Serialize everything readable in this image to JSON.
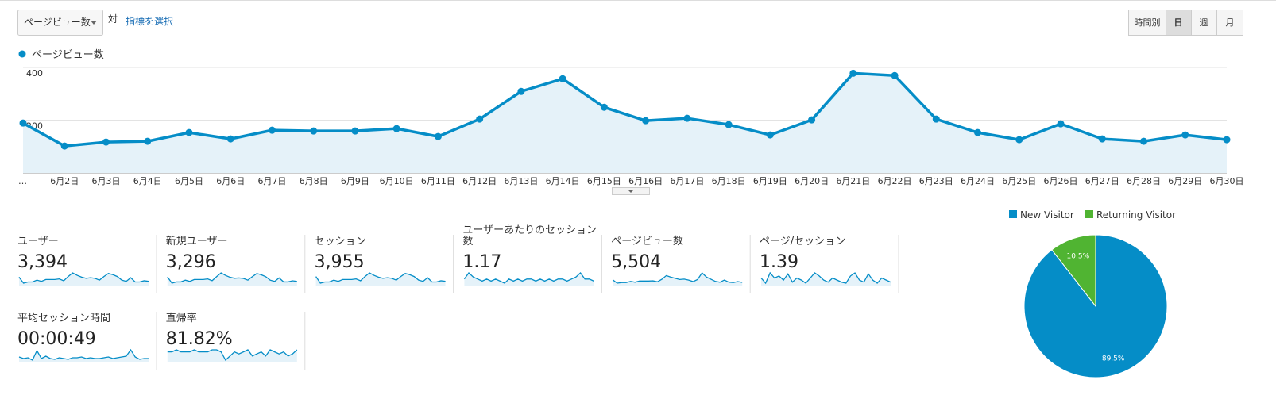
{
  "toolbar": {
    "metric_select": "ページビュー数",
    "vs": "対",
    "select_metric": "指標を選択",
    "intervals": [
      "時間別",
      "日",
      "週",
      "月"
    ]
  },
  "chart_data": [
    {
      "type": "line",
      "categories": [
        "…",
        "6月2日",
        "6月3日",
        "6月4日",
        "6月5日",
        "6月6日",
        "6月7日",
        "6月8日",
        "6月9日",
        "6月10日",
        "6月11日",
        "6月12日",
        "6月13日",
        "6月14日",
        "6月15日",
        "6月16日",
        "6月17日",
        "6月18日",
        "6月19日",
        "6月20日",
        "6月21日",
        "6月22日",
        "6月23日",
        "6月24日",
        "6月25日",
        "6月26日",
        "6月27日",
        "6月28日",
        "6月29日",
        "6月30日"
      ],
      "series": [
        {
          "name": "ページビュー数",
          "color": "#058dc7",
          "values": [
            189,
            102,
            117,
            120,
            153,
            129,
            162,
            159,
            159,
            168,
            138,
            204,
            309,
            357,
            249,
            198,
            207,
            183,
            144,
            201,
            378,
            369,
            204,
            153,
            126,
            186,
            129,
            120,
            144,
            126
          ]
        }
      ],
      "ylim": [
        0,
        400
      ],
      "yticks": [
        200,
        400
      ],
      "grid": true
    },
    {
      "type": "pie",
      "categories": [
        "New Visitor",
        "Returning Visitor"
      ],
      "values": [
        89.5,
        10.5
      ],
      "value_labels": [
        "89.5%",
        "10.5%"
      ],
      "colors": [
        "#058dc7",
        "#50b432"
      ]
    }
  ],
  "metrics": [
    {
      "label": "ユーザー",
      "value": "3,394",
      "sparkline": [
        120,
        70,
        80,
        80,
        95,
        85,
        100,
        100,
        100,
        105,
        90,
        125,
        155,
        135,
        120,
        110,
        115,
        110,
        95,
        125,
        150,
        140,
        125,
        95,
        85,
        115,
        80,
        80,
        90,
        85
      ]
    },
    {
      "label": "新規ユーザー",
      "value": "3,296",
      "sparkline": [
        118,
        68,
        78,
        78,
        92,
        82,
        97,
        97,
        97,
        102,
        88,
        120,
        150,
        130,
        115,
        107,
        110,
        106,
        92,
        120,
        145,
        135,
        120,
        92,
        82,
        110,
        78,
        78,
        87,
        82
      ]
    },
    {
      "label": "セッション",
      "value": "3,955",
      "sparkline": [
        140,
        85,
        95,
        95,
        110,
        100,
        115,
        115,
        115,
        120,
        105,
        140,
        170,
        150,
        135,
        125,
        130,
        125,
        110,
        140,
        165,
        155,
        140,
        110,
        100,
        130,
        95,
        95,
        105,
        100
      ]
    },
    {
      "label": "ユーザーあたりのセッション数",
      "value": "1.17",
      "sparkline": [
        1.17,
        1.2,
        1.18,
        1.17,
        1.16,
        1.17,
        1.16,
        1.17,
        1.16,
        1.15,
        1.17,
        1.16,
        1.17,
        1.16,
        1.17,
        1.17,
        1.16,
        1.17,
        1.16,
        1.17,
        1.16,
        1.17,
        1.17,
        1.16,
        1.17,
        1.18,
        1.2,
        1.17,
        1.17,
        1.16
      ]
    },
    {
      "label": "ページビュー数",
      "value": "5,504",
      "sparkline": [
        190,
        105,
        120,
        120,
        150,
        130,
        160,
        160,
        160,
        165,
        140,
        205,
        300,
        260,
        230,
        200,
        210,
        185,
        145,
        200,
        370,
        260,
        205,
        150,
        130,
        185,
        130,
        120,
        145,
        125
      ]
    },
    {
      "label": "ページ/セッション",
      "value": "1.39",
      "sparkline": [
        1.4,
        1.35,
        1.45,
        1.4,
        1.42,
        1.38,
        1.44,
        1.36,
        1.4,
        1.38,
        1.35,
        1.4,
        1.45,
        1.42,
        1.38,
        1.36,
        1.4,
        1.38,
        1.36,
        1.35,
        1.42,
        1.45,
        1.38,
        1.36,
        1.44,
        1.38,
        1.35,
        1.4,
        1.38,
        1.36
      ]
    },
    {
      "label": "平均セッション時間",
      "value": "00:00:49",
      "sparkline": [
        50,
        40,
        45,
        30,
        90,
        40,
        55,
        40,
        35,
        45,
        40,
        35,
        45,
        45,
        50,
        40,
        45,
        40,
        40,
        45,
        50,
        40,
        45,
        50,
        55,
        95,
        50,
        35,
        40,
        40
      ]
    },
    {
      "label": "直帰率",
      "value": "81.82%",
      "sparkline": [
        82,
        82,
        83,
        82,
        82,
        82,
        83,
        82,
        82,
        82,
        83,
        83,
        82,
        78,
        80,
        82,
        81,
        82,
        83,
        80,
        81,
        82,
        80,
        83,
        82,
        81,
        82,
        80,
        81,
        83
      ]
    }
  ]
}
